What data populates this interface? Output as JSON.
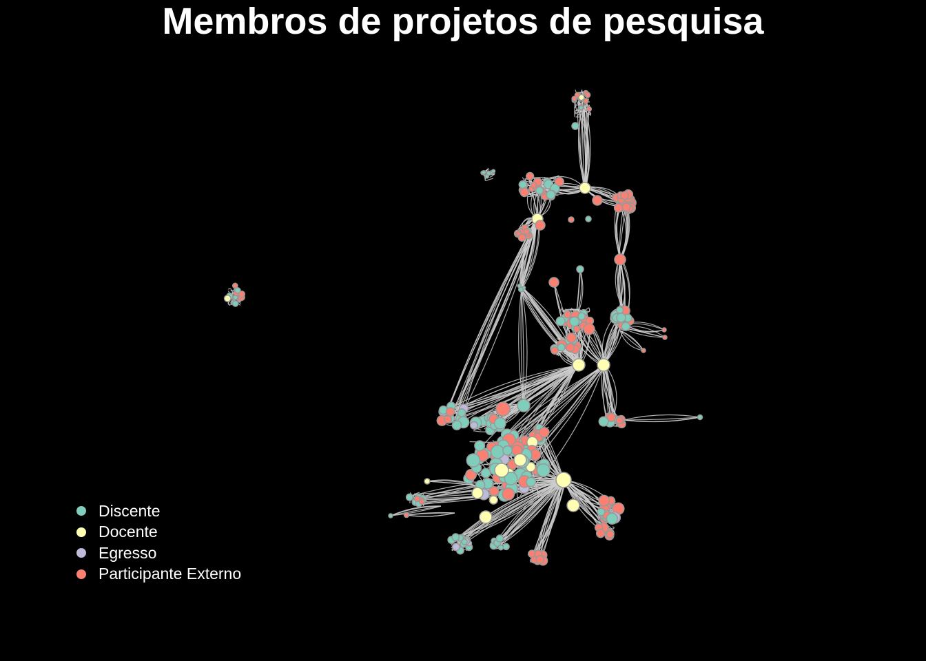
{
  "title": "Membros de projetos de pesquisa",
  "legend": {
    "items": [
      {
        "label": "Discente",
        "color": "#7fcdbb"
      },
      {
        "label": "Docente",
        "color": "#ffffb3"
      },
      {
        "label": "Egresso",
        "color": "#bebada"
      },
      {
        "label": "Participante Externo",
        "color": "#fb8072"
      }
    ]
  },
  "colors": {
    "background": "#000000",
    "edge": "#cccccc",
    "node_stroke": "#999999",
    "title_text": "#ffffff",
    "legend_text": "#ffffff"
  },
  "chart_data": {
    "type": "network",
    "categories": [
      "Discente",
      "Docente",
      "Egresso",
      "Participante Externo"
    ],
    "edge_color": "#cccccc",
    "components": 2,
    "legend_position": "bottom-left"
  }
}
